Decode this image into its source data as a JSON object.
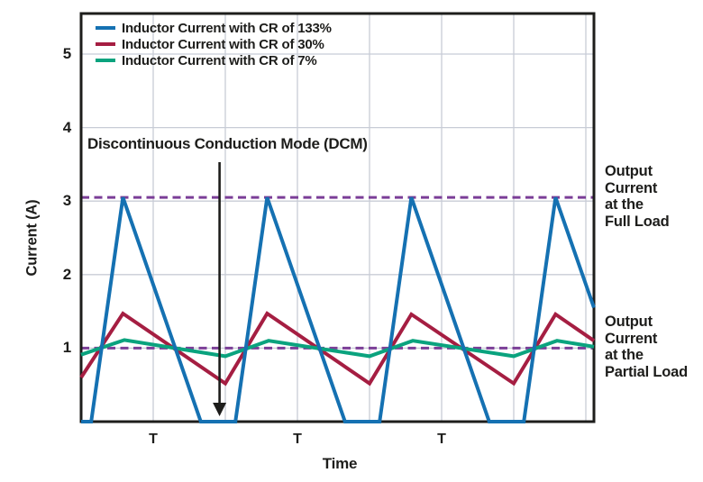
{
  "chart_data": {
    "type": "line",
    "title": "",
    "xlabel": "Time",
    "ylabel": "Current (A)",
    "x_unit": "T (switching period)",
    "x_range_T": [
      0,
      3.556
    ],
    "ylim": [
      0,
      5.55
    ],
    "y_ticks": [
      1,
      2,
      3,
      4,
      5
    ],
    "x_gridlines_T": [
      0.5,
      1.0,
      1.5,
      2.0,
      2.5,
      3.0,
      3.5
    ],
    "x_tick_labels": [
      {
        "t": 0.5,
        "label": "T"
      },
      {
        "t": 1.5,
        "label": "T"
      },
      {
        "t": 2.5,
        "label": "T"
      }
    ],
    "grid": true,
    "legend_position": "top-left",
    "colors": {
      "grid": "#c8ccd6",
      "axis": "#1d1d1b",
      "text": "#1d1d1b",
      "background": "#ffffff"
    },
    "series": [
      {
        "name": "Inductor Current with CR of 133%",
        "color": "#1571b2",
        "points": [
          [
            0,
            0
          ],
          [
            0.07,
            0
          ],
          [
            0.29,
            3.05
          ],
          [
            0.83,
            0
          ],
          [
            1.07,
            0
          ],
          [
            1.29,
            3.05
          ],
          [
            1.83,
            0
          ],
          [
            2.07,
            0
          ],
          [
            2.29,
            3.05
          ],
          [
            2.83,
            0
          ],
          [
            3.07,
            0
          ],
          [
            3.29,
            3.05
          ],
          [
            3.556,
            1.55
          ]
        ]
      },
      {
        "name": "Inductor Current with CR of 30%",
        "color": "#a51e42",
        "points": [
          [
            0,
            0.6
          ],
          [
            0.29,
            1.47
          ],
          [
            1.0,
            0.52
          ],
          [
            1.29,
            1.47
          ],
          [
            2.0,
            0.52
          ],
          [
            2.29,
            1.46
          ],
          [
            3.0,
            0.52
          ],
          [
            3.29,
            1.46
          ],
          [
            3.556,
            1.1
          ]
        ]
      },
      {
        "name": "Inductor Current with CR of 7%",
        "color": "#0aa37e",
        "points": [
          [
            0,
            0.91
          ],
          [
            0.3,
            1.11
          ],
          [
            1.0,
            0.89
          ],
          [
            1.3,
            1.1
          ],
          [
            2.0,
            0.89
          ],
          [
            2.3,
            1.1
          ],
          [
            3.0,
            0.89
          ],
          [
            3.3,
            1.1
          ],
          [
            3.556,
            1.02
          ]
        ]
      }
    ],
    "reference_lines": [
      {
        "value": 3.05,
        "style": "dashed",
        "color": "#7b3e97",
        "label": "Output\nCurrent\nat the\nFull Load"
      },
      {
        "value": 1.0,
        "style": "dashed",
        "color": "#7b3e97",
        "label": "Output\nCurrent\nat the\nPartial Load"
      }
    ],
    "annotation": {
      "text": "Discontinuous Conduction Mode (DCM)",
      "arrow_t": 0.96,
      "arrow_points_to_A": 0
    }
  }
}
